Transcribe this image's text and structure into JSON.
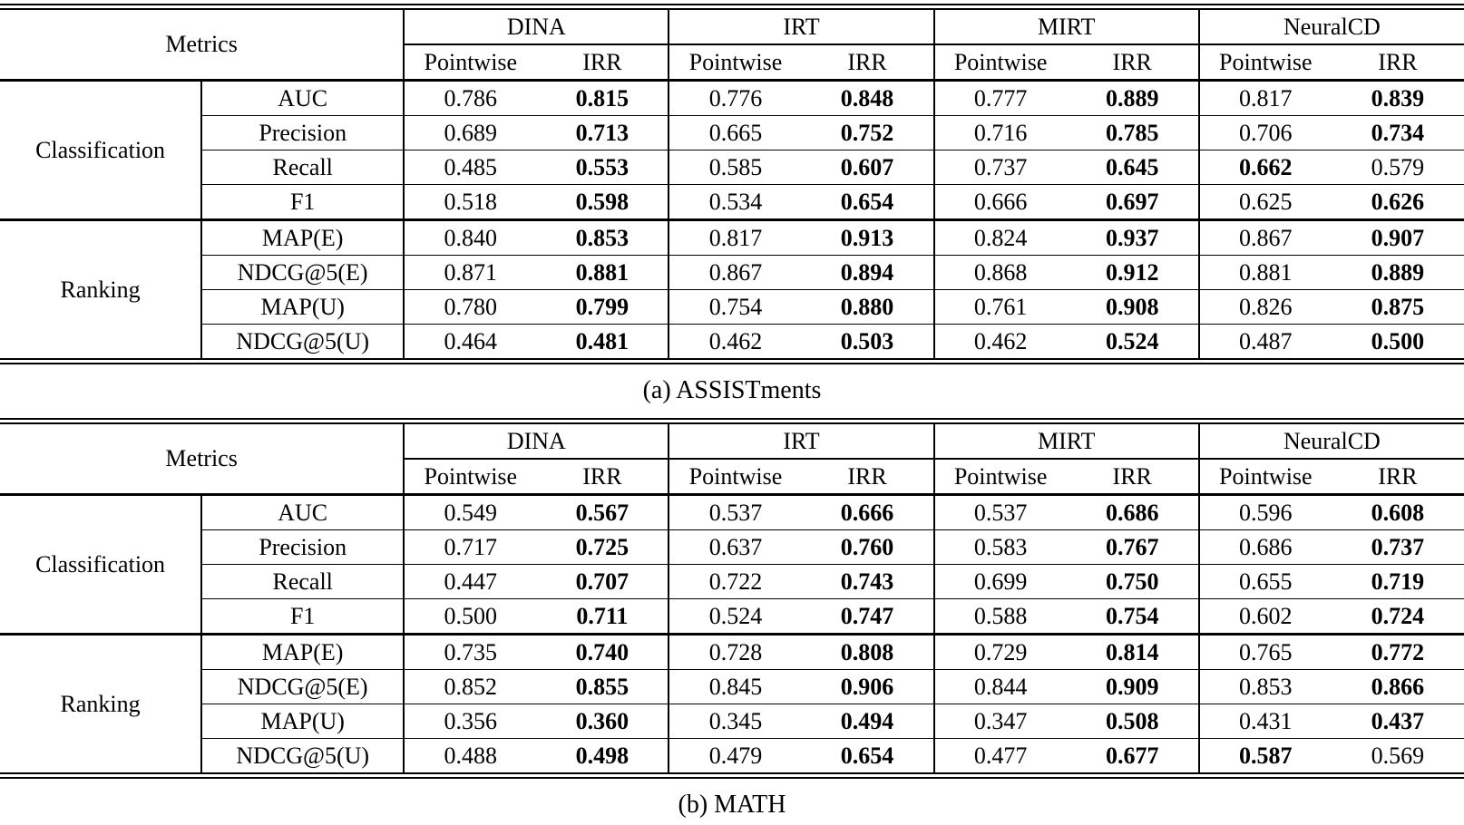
{
  "colors": {
    "text": "#000000",
    "border": "#000000",
    "background": "#ffffff"
  },
  "header": {
    "metrics_label": "Metrics",
    "models": [
      "DINA",
      "IRT",
      "MIRT",
      "NeuralCD"
    ],
    "subcolumns": [
      "Pointwise",
      "IRR"
    ]
  },
  "tables": [
    {
      "id": "assistments",
      "caption": "(a) ASSISTments",
      "groups": [
        {
          "label": "Classification",
          "rows": [
            {
              "metric": "AUC",
              "values": [
                "0.786",
                "0.815",
                "0.776",
                "0.848",
                "0.777",
                "0.889",
                "0.817",
                "0.839"
              ],
              "bold": [
                1,
                3,
                5,
                7
              ]
            },
            {
              "metric": "Precision",
              "values": [
                "0.689",
                "0.713",
                "0.665",
                "0.752",
                "0.716",
                "0.785",
                "0.706",
                "0.734"
              ],
              "bold": [
                1,
                3,
                5,
                7
              ]
            },
            {
              "metric": "Recall",
              "values": [
                "0.485",
                "0.553",
                "0.585",
                "0.607",
                "0.737",
                "0.645",
                "0.662",
                "0.579"
              ],
              "bold": [
                1,
                3,
                5,
                6
              ]
            },
            {
              "metric": "F1",
              "values": [
                "0.518",
                "0.598",
                "0.534",
                "0.654",
                "0.666",
                "0.697",
                "0.625",
                "0.626"
              ],
              "bold": [
                1,
                3,
                5,
                7
              ]
            }
          ]
        },
        {
          "label": "Ranking",
          "rows": [
            {
              "metric": "MAP(E)",
              "values": [
                "0.840",
                "0.853",
                "0.817",
                "0.913",
                "0.824",
                "0.937",
                "0.867",
                "0.907"
              ],
              "bold": [
                1,
                3,
                5,
                7
              ]
            },
            {
              "metric": "NDCG@5(E)",
              "values": [
                "0.871",
                "0.881",
                "0.867",
                "0.894",
                "0.868",
                "0.912",
                "0.881",
                "0.889"
              ],
              "bold": [
                1,
                3,
                5,
                7
              ]
            },
            {
              "metric": "MAP(U)",
              "values": [
                "0.780",
                "0.799",
                "0.754",
                "0.880",
                "0.761",
                "0.908",
                "0.826",
                "0.875"
              ],
              "bold": [
                1,
                3,
                5,
                7
              ]
            },
            {
              "metric": "NDCG@5(U)",
              "values": [
                "0.464",
                "0.481",
                "0.462",
                "0.503",
                "0.462",
                "0.524",
                "0.487",
                "0.500"
              ],
              "bold": [
                1,
                3,
                5,
                7
              ]
            }
          ]
        }
      ]
    },
    {
      "id": "math",
      "caption": "(b) MATH",
      "groups": [
        {
          "label": "Classification",
          "rows": [
            {
              "metric": "AUC",
              "values": [
                "0.549",
                "0.567",
                "0.537",
                "0.666",
                "0.537",
                "0.686",
                "0.596",
                "0.608"
              ],
              "bold": [
                1,
                3,
                5,
                7
              ]
            },
            {
              "metric": "Precision",
              "values": [
                "0.717",
                "0.725",
                "0.637",
                "0.760",
                "0.583",
                "0.767",
                "0.686",
                "0.737"
              ],
              "bold": [
                1,
                3,
                5,
                7
              ]
            },
            {
              "metric": "Recall",
              "values": [
                "0.447",
                "0.707",
                "0.722",
                "0.743",
                "0.699",
                "0.750",
                "0.655",
                "0.719"
              ],
              "bold": [
                1,
                3,
                5,
                7
              ]
            },
            {
              "metric": "F1",
              "values": [
                "0.500",
                "0.711",
                "0.524",
                "0.747",
                "0.588",
                "0.754",
                "0.602",
                "0.724"
              ],
              "bold": [
                1,
                3,
                5,
                7
              ]
            }
          ]
        },
        {
          "label": "Ranking",
          "rows": [
            {
              "metric": "MAP(E)",
              "values": [
                "0.735",
                "0.740",
                "0.728",
                "0.808",
                "0.729",
                "0.814",
                "0.765",
                "0.772"
              ],
              "bold": [
                1,
                3,
                5,
                7
              ]
            },
            {
              "metric": "NDCG@5(E)",
              "values": [
                "0.852",
                "0.855",
                "0.845",
                "0.906",
                "0.844",
                "0.909",
                "0.853",
                "0.866"
              ],
              "bold": [
                1,
                3,
                5,
                7
              ]
            },
            {
              "metric": "MAP(U)",
              "values": [
                "0.356",
                "0.360",
                "0.345",
                "0.494",
                "0.347",
                "0.508",
                "0.431",
                "0.437"
              ],
              "bold": [
                1,
                3,
                5,
                7
              ]
            },
            {
              "metric": "NDCG@5(U)",
              "values": [
                "0.488",
                "0.498",
                "0.479",
                "0.654",
                "0.477",
                "0.677",
                "0.587",
                "0.569"
              ],
              "bold": [
                1,
                3,
                5,
                6
              ]
            }
          ]
        }
      ]
    }
  ]
}
